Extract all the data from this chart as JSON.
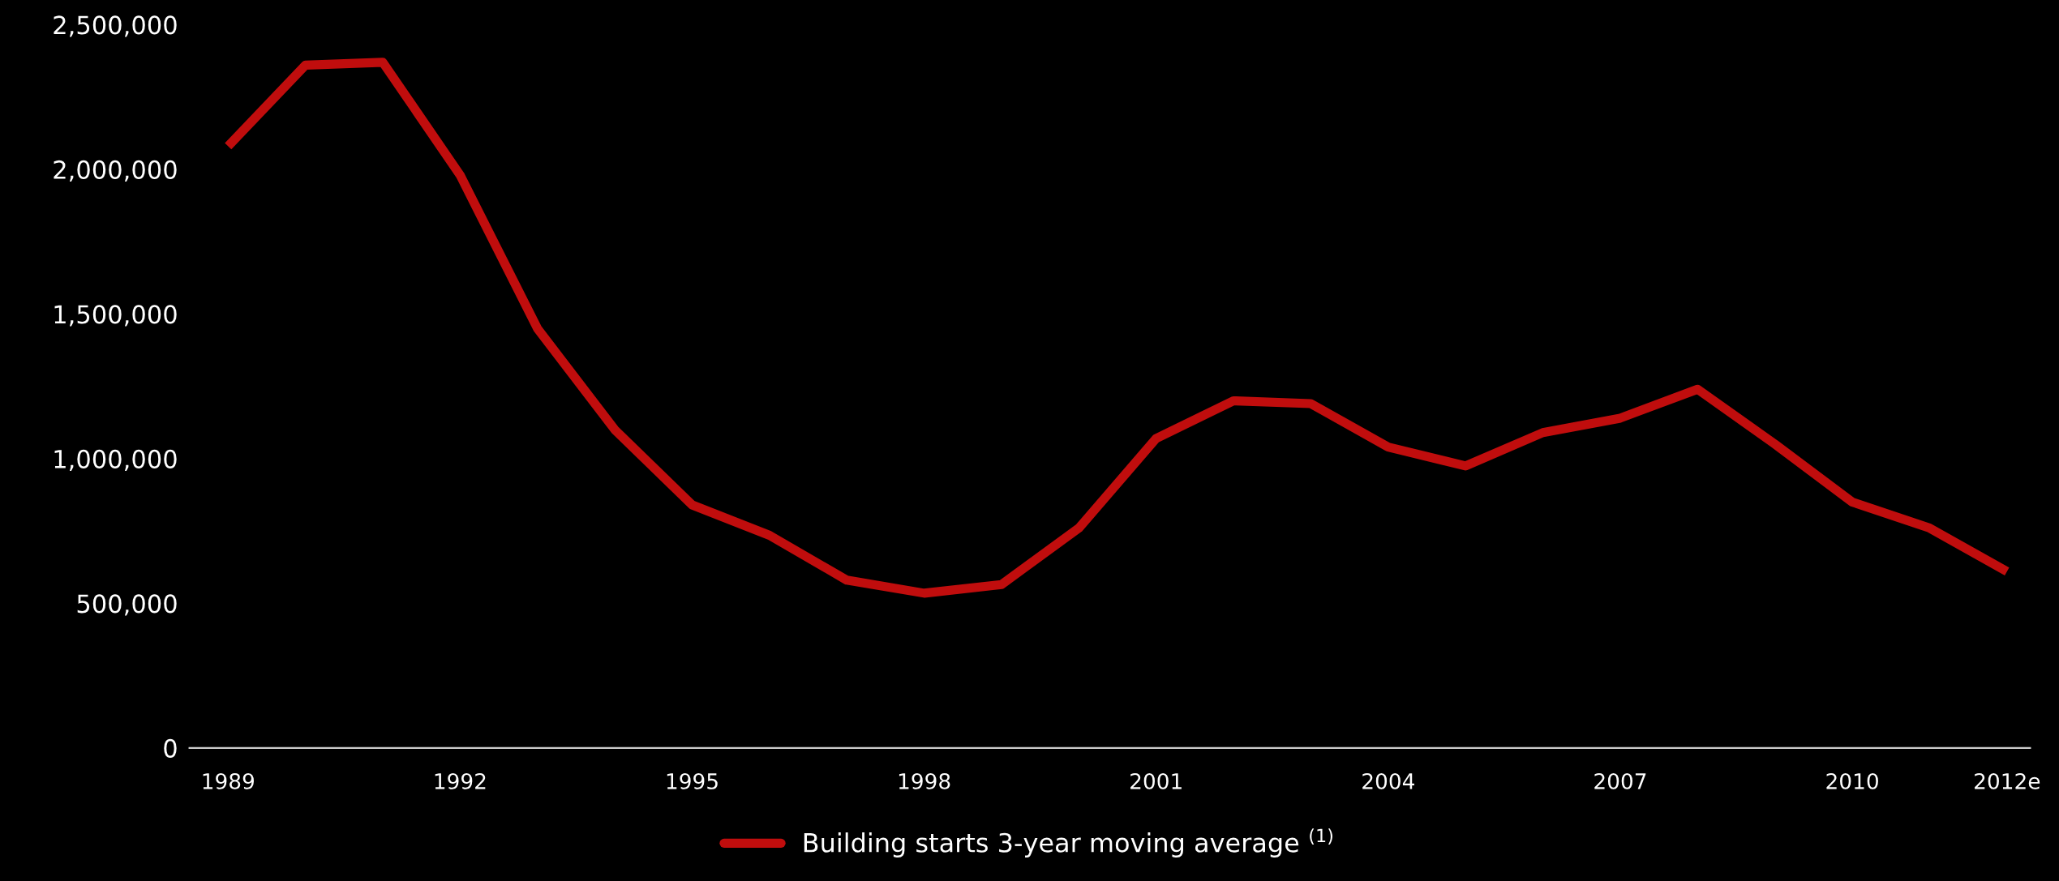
{
  "chart_data": {
    "type": "line",
    "categories": [
      "1989",
      null,
      null,
      "1992",
      null,
      null,
      "1995",
      null,
      null,
      "1998",
      null,
      null,
      "2001",
      null,
      null,
      "2004",
      null,
      null,
      "2007",
      null,
      null,
      "2010",
      null,
      "2012e"
    ],
    "series": [
      {
        "name": "Building starts 3-year moving average $^{(1)}$",
        "color": "#c00d0d",
        "values": [
          2080000,
          2360000,
          2370000,
          1980000,
          1450000,
          1100000,
          840000,
          735000,
          580000,
          535000,
          565000,
          760000,
          1070000,
          1200000,
          1190000,
          1040000,
          975000,
          1090000,
          1140000,
          1240000,
          1050000,
          850000,
          760000,
          610000
        ]
      }
    ],
    "ylim": [
      0,
      2500000
    ],
    "yticks": [
      {
        "value": 0,
        "label": "0"
      },
      {
        "value": 500000,
        "label": "500,000"
      },
      {
        "value": 1000000,
        "label": "1,000,000"
      },
      {
        "value": 1500000,
        "label": "1,500,000"
      },
      {
        "value": 2000000,
        "label": "2,000,000"
      },
      {
        "value": 2500000,
        "label": "2,500,000"
      }
    ],
    "grid": false,
    "legend": "bottom",
    "marker": "none",
    "line_style": "solid"
  }
}
